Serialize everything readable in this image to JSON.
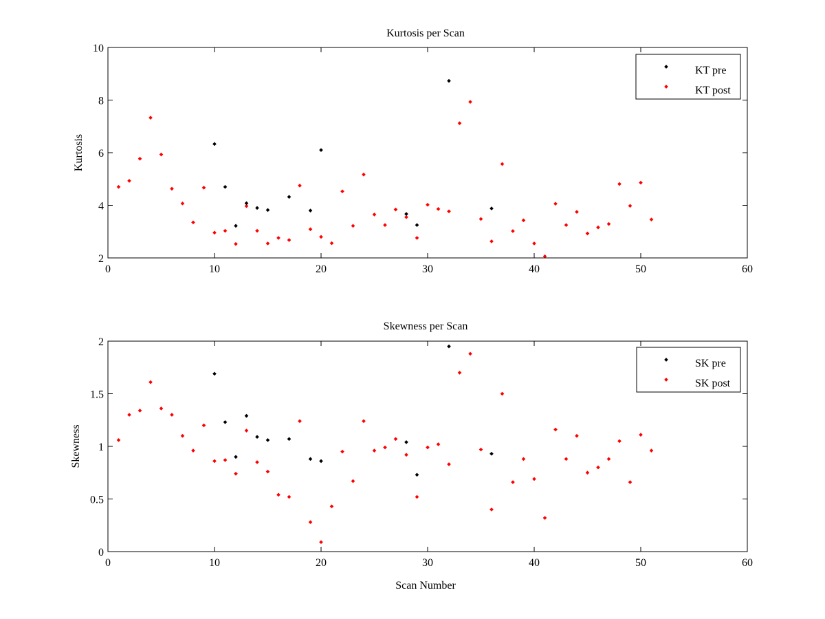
{
  "chart_data": [
    {
      "type": "scatter",
      "title": "Kurtosis per Scan",
      "xlabel": "",
      "ylabel": "Kurtosis",
      "xlim": [
        0,
        60
      ],
      "ylim": [
        2,
        10
      ],
      "xticks": [
        "0",
        "10",
        "20",
        "30",
        "40",
        "50",
        "60"
      ],
      "yticks": [
        "2",
        "4",
        "6",
        "8",
        "10"
      ],
      "legend_position": "top-right",
      "series": [
        {
          "name": "KT pre",
          "color": "#000000",
          "points": [
            [
              10,
              6.33
            ],
            [
              11,
              4.7
            ],
            [
              12,
              3.22
            ],
            [
              13,
              4.08
            ],
            [
              14,
              3.9
            ],
            [
              15,
              3.82
            ],
            [
              17,
              4.32
            ],
            [
              19,
              3.8
            ],
            [
              20,
              6.1
            ],
            [
              28,
              3.67
            ],
            [
              29,
              3.25
            ],
            [
              32,
              8.73
            ],
            [
              36,
              3.88
            ]
          ]
        },
        {
          "name": "KT post",
          "color": "#ff0000",
          "points": [
            [
              1,
              4.7
            ],
            [
              2,
              4.93
            ],
            [
              3,
              5.77
            ],
            [
              4,
              7.33
            ],
            [
              5,
              5.93
            ],
            [
              6,
              4.63
            ],
            [
              7,
              4.07
            ],
            [
              8,
              3.35
            ],
            [
              9,
              4.67
            ],
            [
              10,
              2.96
            ],
            [
              11,
              3.03
            ],
            [
              12,
              2.53
            ],
            [
              13,
              3.97
            ],
            [
              14,
              3.03
            ],
            [
              15,
              2.55
            ],
            [
              16,
              2.76
            ],
            [
              17,
              2.68
            ],
            [
              18,
              4.75
            ],
            [
              19,
              3.09
            ],
            [
              20,
              2.8
            ],
            [
              21,
              2.56
            ],
            [
              22,
              4.53
            ],
            [
              23,
              3.22
            ],
            [
              24,
              5.17
            ],
            [
              25,
              3.65
            ],
            [
              26,
              3.25
            ],
            [
              27,
              3.84
            ],
            [
              28,
              3.55
            ],
            [
              29,
              2.76
            ],
            [
              30,
              4.02
            ],
            [
              31,
              3.86
            ],
            [
              32,
              3.77
            ],
            [
              33,
              7.12
            ],
            [
              34,
              7.93
            ],
            [
              35,
              3.48
            ],
            [
              36,
              2.63
            ],
            [
              37,
              5.57
            ],
            [
              38,
              3.02
            ],
            [
              39,
              3.43
            ],
            [
              40,
              2.55
            ],
            [
              41,
              2.06
            ],
            [
              42,
              4.06
            ],
            [
              43,
              3.25
            ],
            [
              44,
              3.75
            ],
            [
              45,
              2.93
            ],
            [
              46,
              3.16
            ],
            [
              47,
              3.29
            ],
            [
              48,
              4.81
            ],
            [
              49,
              3.98
            ],
            [
              50,
              4.86
            ],
            [
              51,
              3.46
            ]
          ]
        }
      ]
    },
    {
      "type": "scatter",
      "title": "Skewness per Scan",
      "xlabel": "Scan Number",
      "ylabel": "Skewness",
      "xlim": [
        0,
        60
      ],
      "ylim": [
        0,
        2
      ],
      "xticks": [
        "0",
        "10",
        "20",
        "30",
        "40",
        "50",
        "60"
      ],
      "yticks": [
        "0",
        "0.5",
        "1",
        "1.5",
        "2"
      ],
      "legend_position": "top-right",
      "series": [
        {
          "name": "SK pre",
          "color": "#000000",
          "points": [
            [
              10,
              1.69
            ],
            [
              11,
              1.23
            ],
            [
              12,
              0.9
            ],
            [
              13,
              1.29
            ],
            [
              14,
              1.09
            ],
            [
              15,
              1.06
            ],
            [
              17,
              1.07
            ],
            [
              19,
              0.88
            ],
            [
              20,
              0.86
            ],
            [
              28,
              1.04
            ],
            [
              29,
              0.73
            ],
            [
              32,
              1.95
            ],
            [
              36,
              0.93
            ]
          ]
        },
        {
          "name": "SK post",
          "color": "#ff0000",
          "points": [
            [
              1,
              1.06
            ],
            [
              2,
              1.3
            ],
            [
              3,
              1.34
            ],
            [
              4,
              1.61
            ],
            [
              5,
              1.36
            ],
            [
              6,
              1.3
            ],
            [
              7,
              1.1
            ],
            [
              8,
              0.96
            ],
            [
              9,
              1.2
            ],
            [
              10,
              0.86
            ],
            [
              11,
              0.87
            ],
            [
              12,
              0.74
            ],
            [
              13,
              1.15
            ],
            [
              14,
              0.85
            ],
            [
              15,
              0.76
            ],
            [
              16,
              0.54
            ],
            [
              17,
              0.52
            ],
            [
              18,
              1.24
            ],
            [
              19,
              0.28
            ],
            [
              20,
              0.09
            ],
            [
              21,
              0.43
            ],
            [
              22,
              0.95
            ],
            [
              23,
              0.67
            ],
            [
              24,
              1.24
            ],
            [
              25,
              0.96
            ],
            [
              26,
              0.99
            ],
            [
              27,
              1.07
            ],
            [
              28,
              0.92
            ],
            [
              29,
              0.52
            ],
            [
              30,
              0.99
            ],
            [
              31,
              1.02
            ],
            [
              32,
              0.83
            ],
            [
              33,
              1.7
            ],
            [
              34,
              1.88
            ],
            [
              35,
              0.97
            ],
            [
              36,
              0.4
            ],
            [
              37,
              1.5
            ],
            [
              38,
              0.66
            ],
            [
              39,
              0.88
            ],
            [
              40,
              0.69
            ],
            [
              41,
              0.32
            ],
            [
              42,
              1.16
            ],
            [
              43,
              0.88
            ],
            [
              44,
              1.1
            ],
            [
              45,
              0.75
            ],
            [
              46,
              0.8
            ],
            [
              47,
              0.88
            ],
            [
              48,
              1.05
            ],
            [
              49,
              0.66
            ],
            [
              50,
              1.11
            ],
            [
              51,
              0.96
            ]
          ]
        }
      ]
    }
  ]
}
